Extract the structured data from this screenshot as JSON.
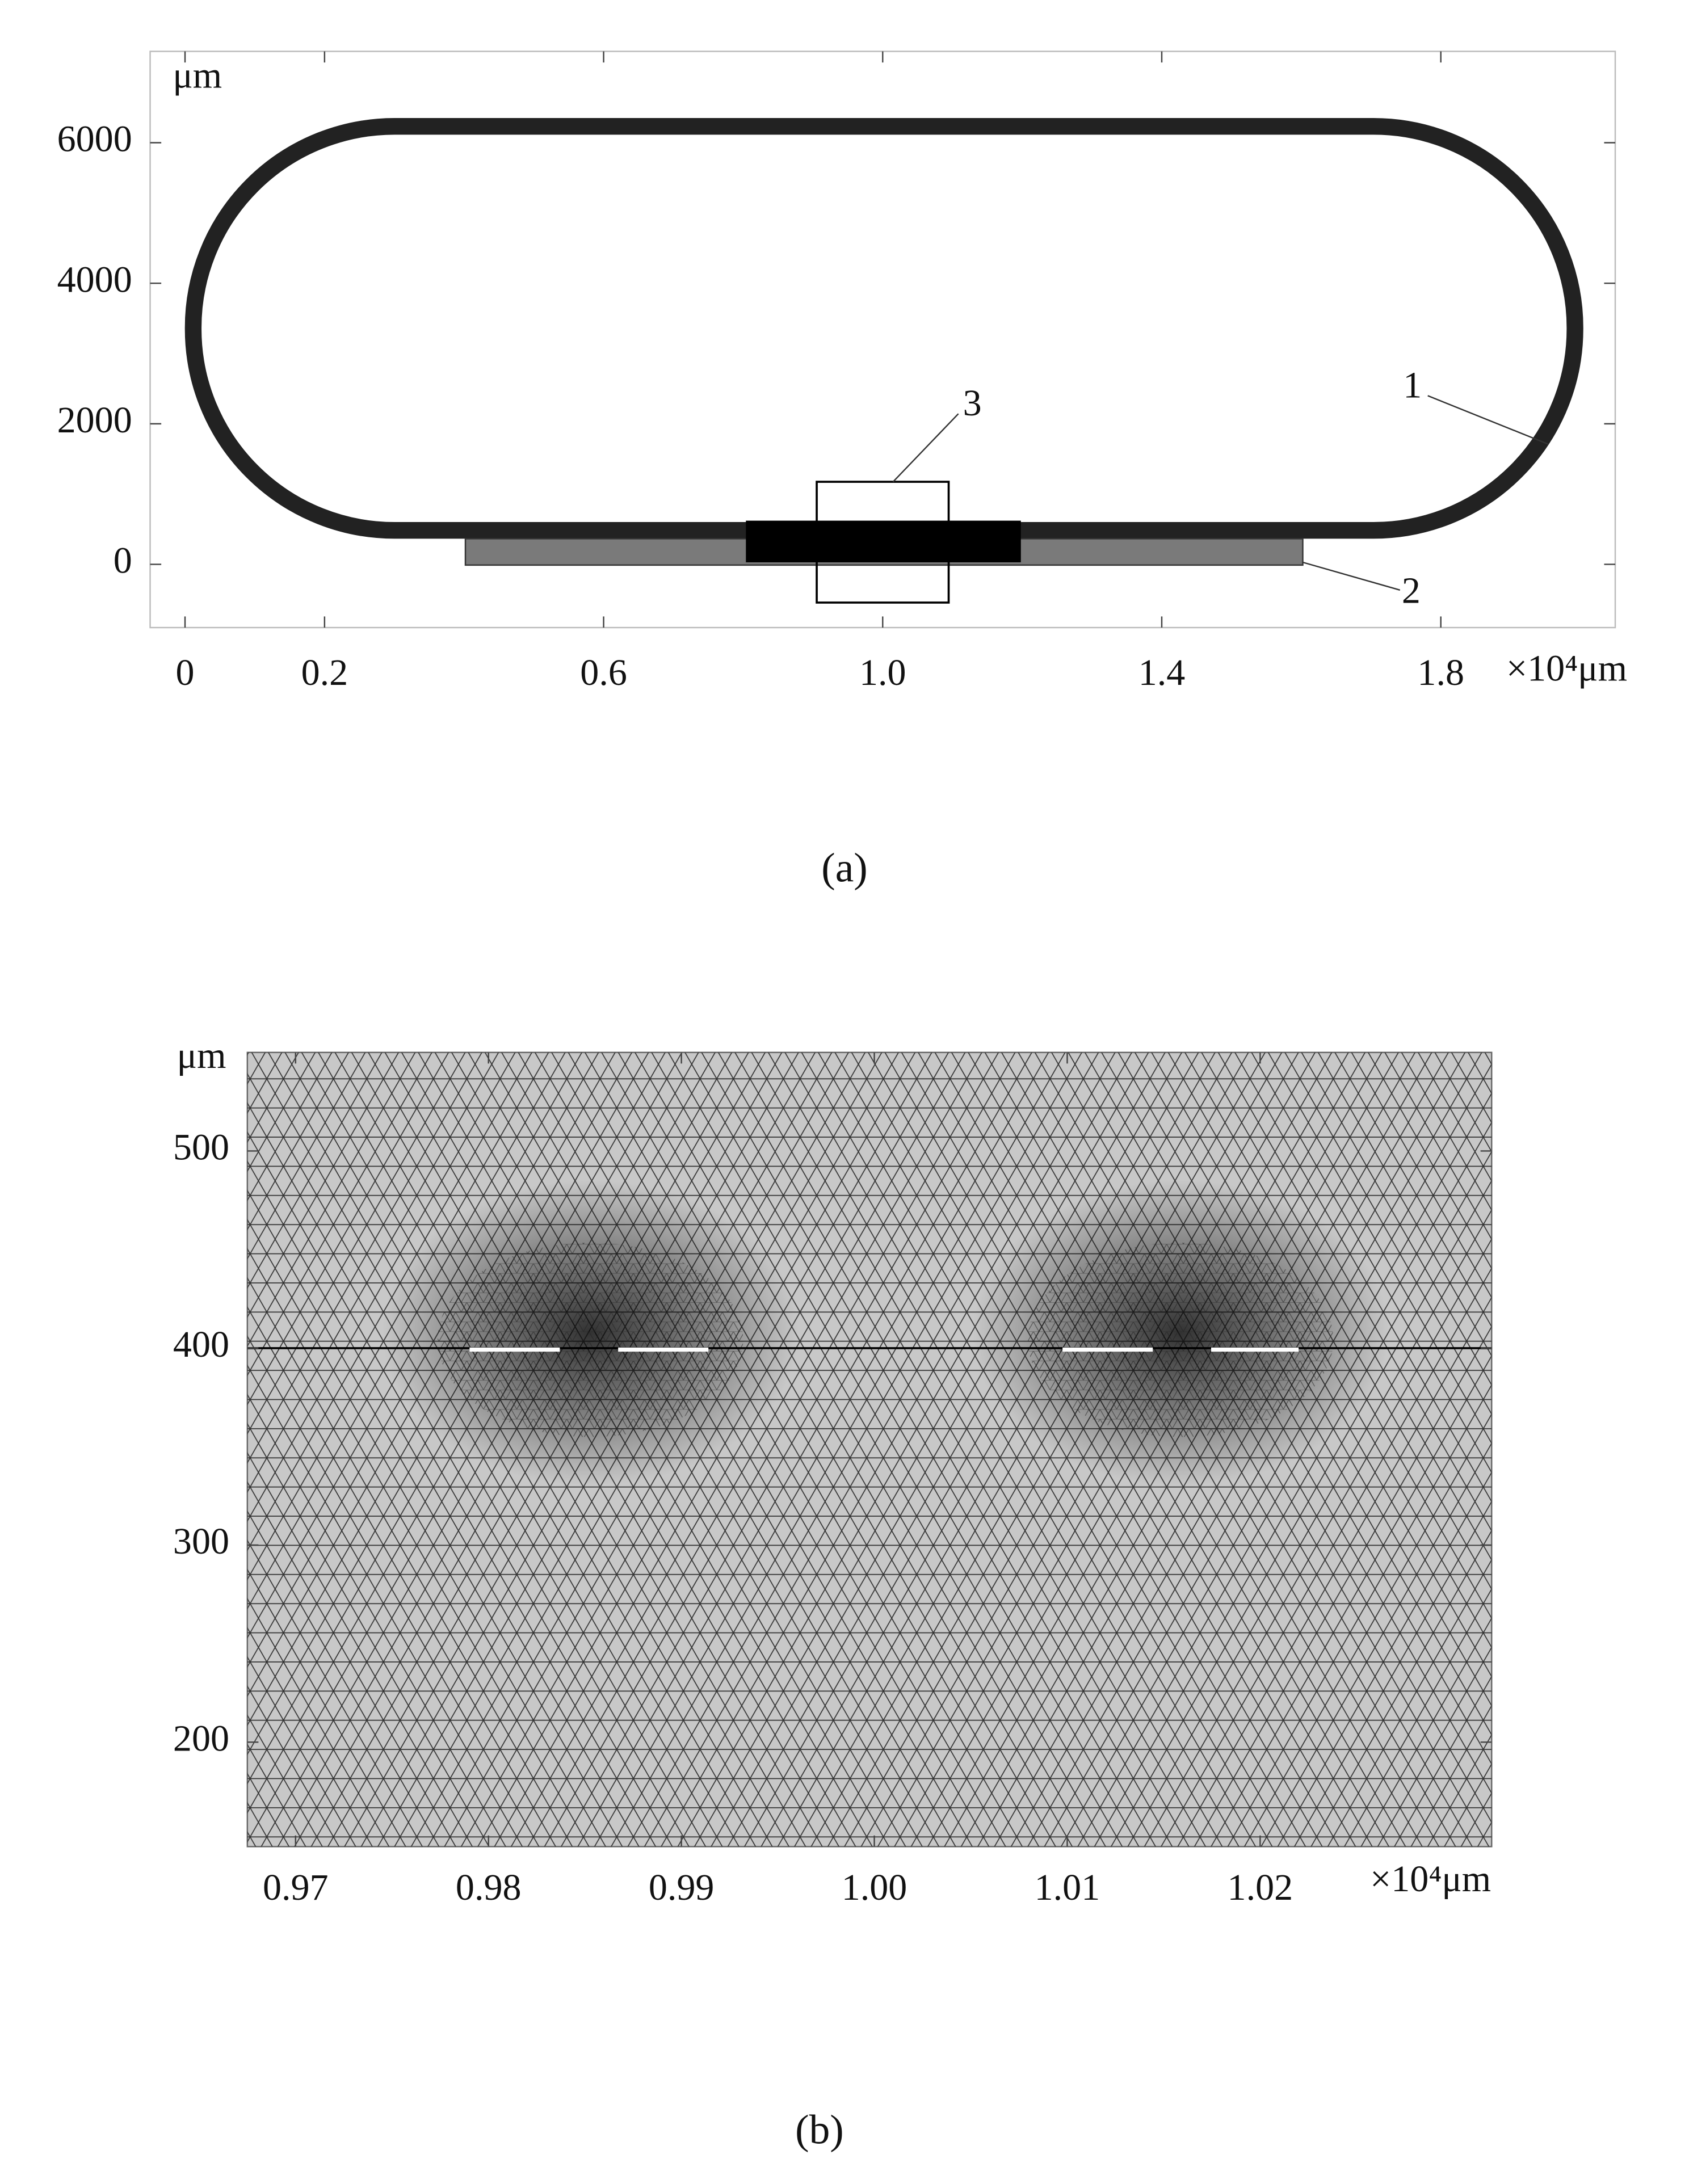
{
  "chart_data": [
    {
      "type": "geometry",
      "caption": "(a)",
      "y_unit": "μm",
      "x_unit": "×10⁴μm",
      "xlim": [
        -0.05,
        2.05
      ],
      "ylim": [
        -900,
        7300
      ],
      "xticks": [
        0,
        0.2,
        0.6,
        {
          "value": 1,
          "label": "1.0"
        },
        1.4,
        1.8
      ],
      "yticks": [
        0,
        2000,
        4000,
        6000
      ],
      "annotations": [
        "1",
        "2",
        "3"
      ]
    },
    {
      "type": "mesh",
      "caption": "(b)",
      "y_unit": "μm",
      "x_unit": "×10⁴μm",
      "xlim": [
        0.9675,
        1.032
      ],
      "ylim": [
        147,
        550
      ],
      "xticks": [
        0.97,
        0.98,
        0.99,
        {
          "value": 1,
          "label": "1.00"
        },
        1.01,
        1.02
      ],
      "yticks": [
        200,
        300,
        400,
        500
      ]
    }
  ]
}
